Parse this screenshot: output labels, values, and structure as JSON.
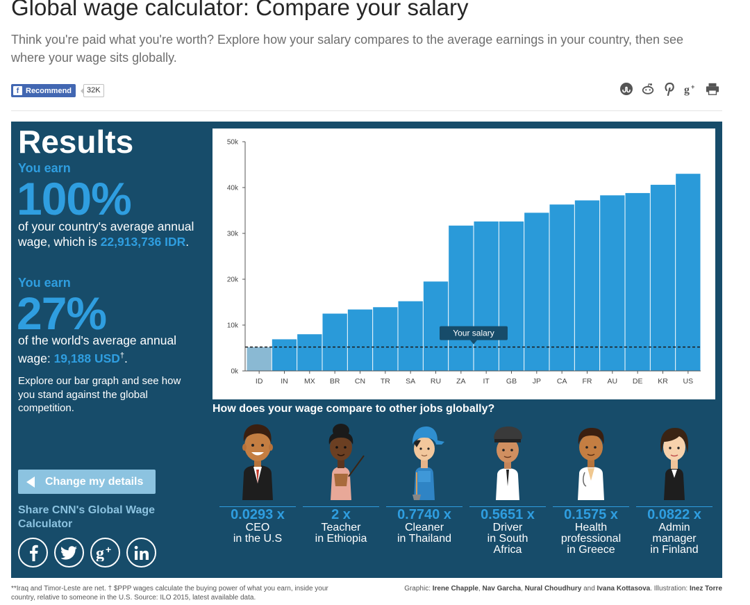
{
  "header": {
    "title": "Global wage calculator: Compare your salary",
    "subtitle": "Think you're paid what you're worth? Explore how your salary compares to the average earnings in your country, then see where your wage sits globally.",
    "recommend_label": "Recommend",
    "recommend_count": "32K",
    "share_icons": [
      "stumbleupon-icon",
      "reddit-icon",
      "pinterest-icon",
      "google-plus-icon",
      "print-icon"
    ]
  },
  "results": {
    "title": "Results",
    "country": {
      "you_earn": "You earn",
      "percent": "100%",
      "text": "of your country's average annual wage, which is",
      "amount": "22,913,736 IDR",
      "suffix": "."
    },
    "world": {
      "you_earn": "You earn",
      "percent": "27%",
      "text": "of the world's average annual wage:",
      "amount": "19,188 USD",
      "dagger": "†",
      "suffix": "."
    },
    "explore": "Explore our bar graph and see how you stand against the global competition.",
    "change_button": "Change my details",
    "share_label": "Share CNN's Global Wage Calculator",
    "social_icons": [
      "facebook-icon",
      "twitter-icon",
      "google-plus-icon",
      "linkedin-icon"
    ]
  },
  "compare_title": "How does your wage compare to other jobs globally?",
  "jobs": [
    {
      "multiplier": "0.0293 x",
      "label": "CEO\nin the U.S",
      "icon": "ceo-figure"
    },
    {
      "multiplier": "2 x",
      "label": "Teacher\nin Ethiopia",
      "icon": "teacher-figure"
    },
    {
      "multiplier": "0.7740 x",
      "label": "Cleaner\nin Thailand",
      "icon": "cleaner-figure"
    },
    {
      "multiplier": "0.5651 x",
      "label": "Driver\nin South\nAfrica",
      "icon": "driver-figure"
    },
    {
      "multiplier": "0.1575 x",
      "label": "Health\nprofessional\nin Greece",
      "icon": "doctor-figure"
    },
    {
      "multiplier": "0.0822 x",
      "label": "Admin\nmanager\nin Finland",
      "icon": "admin-figure"
    }
  ],
  "footer": {
    "note": "**Iraq and Timor-Leste are net. † $PPP wages calculate the buying power of what you earn, inside your country, relative to someone in the U.S. Source: ILO 2015, latest available data.",
    "credits_prefix": "Graphic: ",
    "credits_names": "Irene Chapple",
    "credits_rest_1": ", ",
    "credits_names_2": "Nav Garcha",
    "credits_rest_2": ", ",
    "credits_names_3": "Nural Choudhury",
    "credits_rest_3": " and ",
    "credits_names_4": "Ivana Kottasova",
    "credits_rest_4": ". Illustration: ",
    "credits_names_5": "Inez Torre"
  },
  "colors": {
    "panel": "#174c6a",
    "accent": "#2f9ee0",
    "bar": "#2a9ad9",
    "highlight_bar": "#8ab9d3"
  },
  "chart_data": {
    "type": "bar",
    "categories": [
      "ID",
      "IN",
      "MX",
      "BR",
      "CN",
      "TR",
      "SA",
      "RU",
      "ZA",
      "IT",
      "GB",
      "JP",
      "CA",
      "FR",
      "AU",
      "DE",
      "KR",
      "US"
    ],
    "values": [
      5200,
      6900,
      8000,
      12500,
      13400,
      13900,
      15200,
      19500,
      31700,
      32600,
      32600,
      34500,
      36300,
      37200,
      38300,
      38800,
      40600,
      43000
    ],
    "highlight_category": "ID",
    "yticks": [
      "0k",
      "10k",
      "20k",
      "30k",
      "40k",
      "50k"
    ],
    "ylim": [
      0,
      50000
    ],
    "reference_line": {
      "label": "Your salary",
      "value": 5200
    },
    "grid": false
  }
}
